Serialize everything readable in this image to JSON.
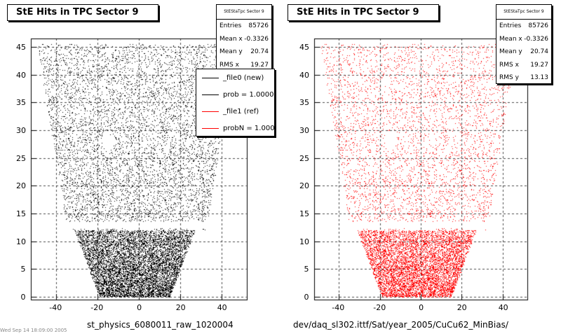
{
  "chart_data": [
    {
      "type": "scatter",
      "title": "StE Hits in TPC Sector 9",
      "xlabel": "st_physics_6080011_raw_1020004",
      "ylabel": "",
      "xlim": [
        -52,
        52
      ],
      "ylim": [
        -0.5,
        46.5
      ],
      "xticks": [
        "-40",
        "-20",
        "0",
        "20",
        "40"
      ],
      "yticks": [
        "0",
        "5",
        "10",
        "15",
        "20",
        "25",
        "30",
        "35",
        "40",
        "45"
      ],
      "grid": true,
      "marker_color": "#000000",
      "stats": {
        "header": "StEStaTpc Sector 9",
        "rows": [
          {
            "label": "Entries",
            "value": "85726"
          },
          {
            "label": "Mean x",
            "value": "-0.3326"
          },
          {
            "label": "Mean y",
            "value": "20.74"
          },
          {
            "label": "RMS x",
            "value": "19.27"
          }
        ]
      },
      "legend": {
        "placement": "top-right",
        "entries": [
          {
            "label": "_file0 (new)",
            "color": "#000000"
          },
          {
            "label": "prob = 1.000000",
            "color": "#000000"
          },
          {
            "label": "_file1 (ref)",
            "color": "#ff0000"
          },
          {
            "label": "probN = 1.000000",
            "color": "#ff0000"
          }
        ]
      },
      "footnote": "Wed Sep 14 18:09:00 2005"
    },
    {
      "type": "scatter",
      "title": "StE Hits in TPC Sector 9",
      "xlabel": "dev/daq_sl302.ittf/Sat/year_2005/CuCu62_MinBias/",
      "ylabel": "",
      "xlim": [
        -52,
        52
      ],
      "ylim": [
        -0.5,
        46.5
      ],
      "xticks": [
        "-40",
        "-20",
        "0",
        "20",
        "40"
      ],
      "yticks": [
        "0",
        "5",
        "10",
        "15",
        "20",
        "25",
        "30",
        "35",
        "40",
        "45"
      ],
      "grid": true,
      "marker_color": "#ff0000",
      "stats": {
        "header": "StEStaTpc Sector 9",
        "rows": [
          {
            "label": "Entries",
            "value": "85726"
          },
          {
            "label": "Mean x",
            "value": "-0.3326"
          },
          {
            "label": "Mean y",
            "value": "20.74"
          },
          {
            "label": "RMS x",
            "value": "19.27"
          },
          {
            "label": "RMS y",
            "value": "13.13"
          }
        ]
      }
    }
  ]
}
